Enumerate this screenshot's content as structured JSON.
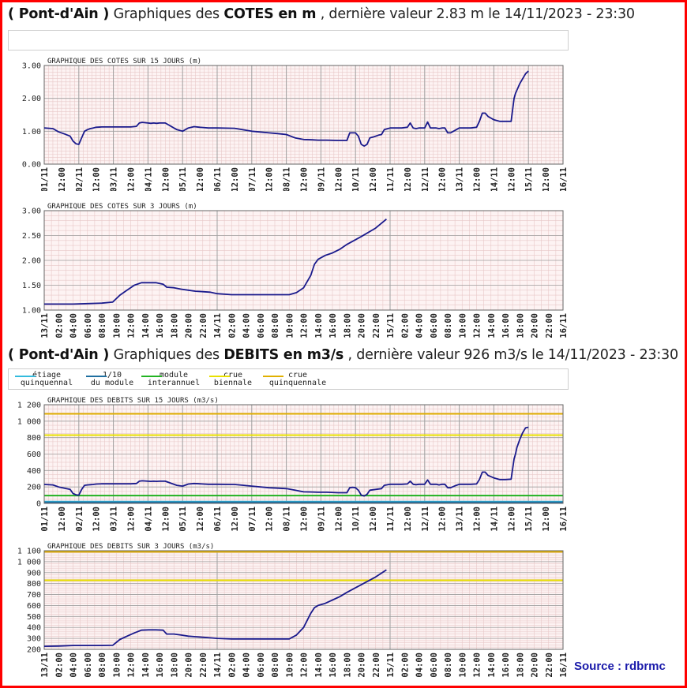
{
  "header_cotes": {
    "station": "( Pont-d'Ain )",
    "prefix": "Graphiques des",
    "bold": "COTES en m",
    "suffix": ", dernière valeur 2.83 m le 14/11/2023 - 23:30"
  },
  "header_debits": {
    "station": "( Pont-d'Ain )",
    "prefix": "Graphiques des",
    "bold": "DEBITS en m3/s",
    "suffix": ", dernière valeur 926 m3/s le 14/11/2023 - 23:30"
  },
  "legend": [
    {
      "line1": "étiage",
      "line2": "quinquennal",
      "color": "#33bbdd"
    },
    {
      "line1": "1/10",
      "line2": "du module",
      "color": "#1f6fa0"
    },
    {
      "line1": "module",
      "line2": "interannuel",
      "color": "#22b322"
    },
    {
      "line1": "crue",
      "line2": "biennale",
      "color": "#e8e000"
    },
    {
      "line1": "crue",
      "line2": "quinquennale",
      "color": "#e0b000"
    }
  ],
  "source": "Source : rdbrmc",
  "colors": {
    "series": "#1a1a8c",
    "plot_bg": "#fdf3f3",
    "grid_minor": "#e8c8c8",
    "grid_major": "#a0a0a0",
    "frame": "#ff0000"
  },
  "chart_data": [
    {
      "id": "cotes15",
      "type": "line",
      "title": "GRAPHIQUE DES COTES SUR 15 JOURS (m)",
      "xlim": [
        0,
        360
      ],
      "x_unit": "hours since 01/11 00:00",
      "ylim": [
        0,
        3
      ],
      "yticks": [
        0,
        1,
        2,
        3
      ],
      "ytick_labels": [
        "0.00",
        "1.00",
        "2.00",
        "3.00"
      ],
      "xtick_labels": [
        "01/11",
        "12:00",
        "02/11",
        "12:00",
        "03/11",
        "12:00",
        "04/11",
        "12:00",
        "05/11",
        "12:00",
        "06/11",
        "12:00",
        "07/11",
        "12:00",
        "08/11",
        "12:00",
        "09/11",
        "12:00",
        "10/11",
        "12:00",
        "11/11",
        "12:00",
        "12/11",
        "12:00",
        "13/11",
        "12:00",
        "14/11",
        "12:00",
        "15/11",
        "12:00",
        "16/11"
      ],
      "xtick_hours": [
        0,
        12,
        24,
        36,
        48,
        60,
        72,
        84,
        96,
        108,
        120,
        132,
        144,
        156,
        168,
        180,
        192,
        204,
        216,
        228,
        240,
        252,
        264,
        276,
        288,
        300,
        312,
        324,
        336,
        348,
        360
      ],
      "thresholds": [],
      "x": [
        0,
        6,
        10,
        14,
        18,
        20,
        22,
        24,
        26,
        28,
        30,
        32,
        34,
        36,
        40,
        48,
        60,
        64,
        66,
        68,
        72,
        74,
        76,
        78,
        80,
        84,
        92,
        96,
        100,
        104,
        108,
        114,
        120,
        132,
        144,
        156,
        162,
        168,
        174,
        180,
        186,
        190,
        196,
        204,
        210,
        212,
        214,
        216,
        218,
        220,
        222,
        224,
        226,
        228,
        230,
        232,
        234,
        236,
        240,
        244,
        248,
        252,
        254,
        256,
        258,
        260,
        264,
        266,
        268,
        270,
        272,
        274,
        276,
        278,
        280,
        282,
        284,
        286,
        288,
        292,
        296,
        300,
        302,
        304,
        306,
        308,
        312,
        316,
        320,
        324,
        326,
        327,
        328,
        330,
        332,
        334,
        336
      ],
      "y": [
        1.1,
        1.08,
        0.98,
        0.92,
        0.85,
        0.7,
        0.62,
        0.6,
        0.8,
        1.0,
        1.05,
        1.08,
        1.1,
        1.12,
        1.13,
        1.13,
        1.13,
        1.15,
        1.25,
        1.27,
        1.25,
        1.24,
        1.25,
        1.24,
        1.25,
        1.25,
        1.05,
        1.0,
        1.1,
        1.14,
        1.12,
        1.1,
        1.1,
        1.09,
        1.0,
        0.95,
        0.93,
        0.9,
        0.8,
        0.75,
        0.74,
        0.73,
        0.73,
        0.72,
        0.72,
        0.95,
        0.95,
        0.95,
        0.85,
        0.6,
        0.55,
        0.6,
        0.8,
        0.82,
        0.85,
        0.88,
        0.9,
        1.05,
        1.1,
        1.1,
        1.1,
        1.12,
        1.25,
        1.1,
        1.08,
        1.1,
        1.1,
        1.28,
        1.1,
        1.1,
        1.1,
        1.08,
        1.1,
        1.1,
        0.95,
        0.95,
        1.0,
        1.05,
        1.1,
        1.1,
        1.1,
        1.12,
        1.3,
        1.55,
        1.55,
        1.45,
        1.35,
        1.3,
        1.3,
        1.3,
        2.0,
        2.15,
        2.25,
        2.45,
        2.6,
        2.75,
        2.83
      ]
    },
    {
      "id": "cotes3",
      "type": "line",
      "title": "GRAPHIQUE DES COTES SUR 3 JOURS (m)",
      "xlim": [
        0,
        72
      ],
      "x_unit": "hours since 13/11 00:00",
      "ylim": [
        1,
        3
      ],
      "yticks": [
        1.0,
        1.5,
        2.0,
        2.5,
        3.0
      ],
      "ytick_labels": [
        "1.00",
        "1.50",
        "2.00",
        "2.50",
        "3.00"
      ],
      "xtick_labels": [
        "13/11",
        "02:00",
        "04:00",
        "06:00",
        "08:00",
        "10:00",
        "12:00",
        "14:00",
        "16:00",
        "18:00",
        "20:00",
        "22:00",
        "14/11",
        "02:00",
        "04:00",
        "06:00",
        "08:00",
        "10:00",
        "12:00",
        "14:00",
        "16:00",
        "18:00",
        "20:00",
        "22:00",
        "15/11",
        "02:00",
        "04:00",
        "06:00",
        "08:00",
        "10:00",
        "12:00",
        "14:00",
        "16:00",
        "18:00",
        "20:00",
        "22:00",
        "16/11"
      ],
      "xtick_hours": [
        0,
        2,
        4,
        6,
        8,
        10,
        12,
        14,
        16,
        18,
        20,
        22,
        24,
        26,
        28,
        30,
        32,
        34,
        36,
        38,
        40,
        42,
        44,
        46,
        48,
        50,
        52,
        54,
        56,
        58,
        60,
        62,
        64,
        66,
        68,
        70,
        72
      ],
      "thresholds": [],
      "x": [
        0,
        4,
        6,
        8,
        9.5,
        10.5,
        11.5,
        12.5,
        13.5,
        14.5,
        15.5,
        16.5,
        17,
        18,
        19,
        20,
        21,
        22,
        23,
        24,
        26,
        30,
        34,
        35,
        36,
        37,
        37.5,
        38,
        39,
        40,
        41,
        42,
        44,
        46,
        47.5
      ],
      "y": [
        1.12,
        1.12,
        1.13,
        1.14,
        1.16,
        1.3,
        1.4,
        1.5,
        1.55,
        1.55,
        1.55,
        1.52,
        1.46,
        1.45,
        1.42,
        1.4,
        1.38,
        1.37,
        1.36,
        1.33,
        1.31,
        1.31,
        1.31,
        1.35,
        1.45,
        1.7,
        1.92,
        2.02,
        2.1,
        2.15,
        2.22,
        2.32,
        2.48,
        2.65,
        2.83
      ]
    },
    {
      "id": "debits15",
      "type": "line",
      "title": "GRAPHIQUE DES DEBITS SUR 15 JOURS (m3/s)",
      "xlim": [
        0,
        360
      ],
      "x_unit": "hours since 01/11 00:00",
      "ylim": [
        0,
        1200
      ],
      "yticks": [
        0,
        200,
        400,
        600,
        800,
        1000,
        1200
      ],
      "ytick_labels": [
        "0",
        "200",
        "400",
        "600",
        "800",
        "1 000",
        "1 200"
      ],
      "xtick_labels": [
        "01/11",
        "12:00",
        "02/11",
        "12:00",
        "03/11",
        "12:00",
        "04/11",
        "12:00",
        "05/11",
        "12:00",
        "06/11",
        "12:00",
        "07/11",
        "12:00",
        "08/11",
        "12:00",
        "09/11",
        "12:00",
        "10/11",
        "12:00",
        "11/11",
        "12:00",
        "12/11",
        "12:00",
        "13/11",
        "12:00",
        "14/11",
        "12:00",
        "15/11",
        "12:00",
        "16/11"
      ],
      "xtick_hours": [
        0,
        12,
        24,
        36,
        48,
        60,
        72,
        84,
        96,
        108,
        120,
        132,
        144,
        156,
        168,
        180,
        192,
        204,
        216,
        228,
        240,
        252,
        264,
        276,
        288,
        300,
        312,
        324,
        336,
        348,
        360
      ],
      "thresholds": [
        {
          "name": "étiage quinquennal",
          "value": 22,
          "color": "#33bbdd"
        },
        {
          "name": "1/10 du module",
          "value": 13,
          "color": "#1f6fa0"
        },
        {
          "name": "module interannuel",
          "value": 95,
          "color": "#22b322"
        },
        {
          "name": "crue biennale",
          "value": 830,
          "color": "#e8e000"
        },
        {
          "name": "crue quinquennale",
          "value": 1090,
          "color": "#e0b000"
        }
      ],
      "x": [
        0,
        6,
        10,
        14,
        18,
        20,
        22,
        24,
        26,
        28,
        30,
        32,
        34,
        36,
        40,
        48,
        60,
        64,
        66,
        68,
        72,
        74,
        76,
        78,
        80,
        84,
        92,
        96,
        100,
        104,
        108,
        114,
        120,
        132,
        144,
        156,
        162,
        168,
        174,
        180,
        186,
        190,
        196,
        204,
        210,
        212,
        214,
        216,
        218,
        220,
        222,
        224,
        226,
        228,
        230,
        232,
        234,
        236,
        240,
        244,
        248,
        252,
        254,
        256,
        258,
        260,
        264,
        266,
        268,
        270,
        272,
        274,
        276,
        278,
        280,
        282,
        284,
        286,
        288,
        292,
        296,
        300,
        302,
        304,
        306,
        308,
        312,
        316,
        320,
        324,
        326,
        327,
        328,
        330,
        332,
        334,
        336
      ],
      "y": [
        230,
        225,
        200,
        185,
        170,
        120,
        105,
        100,
        170,
        220,
        225,
        228,
        230,
        235,
        238,
        238,
        238,
        242,
        270,
        275,
        270,
        268,
        270,
        268,
        270,
        270,
        220,
        210,
        235,
        242,
        238,
        232,
        232,
        230,
        210,
        190,
        185,
        180,
        160,
        140,
        138,
        135,
        135,
        130,
        130,
        190,
        195,
        190,
        160,
        100,
        90,
        110,
        160,
        165,
        170,
        175,
        180,
        220,
        232,
        232,
        232,
        236,
        270,
        232,
        228,
        232,
        232,
        285,
        232,
        232,
        232,
        225,
        232,
        232,
        190,
        190,
        205,
        220,
        232,
        232,
        232,
        236,
        290,
        380,
        380,
        340,
        310,
        290,
        290,
        295,
        540,
        600,
        680,
        780,
        860,
        920,
        926
      ]
    },
    {
      "id": "debits3",
      "type": "line",
      "title": "GRAPHIQUE DES DEBITS SUR 3 JOURS (m3/s)",
      "xlim": [
        0,
        72
      ],
      "x_unit": "hours since 13/11 00:00",
      "ylim": [
        200,
        1100
      ],
      "yticks": [
        200,
        300,
        400,
        500,
        600,
        700,
        800,
        900,
        1000,
        1100
      ],
      "ytick_labels": [
        "200",
        "300",
        "400",
        "500",
        "600",
        "700",
        "800",
        "900",
        "1 000",
        "1 100"
      ],
      "xtick_labels": [
        "13/11",
        "02:00",
        "04:00",
        "06:00",
        "08:00",
        "10:00",
        "12:00",
        "14:00",
        "16:00",
        "18:00",
        "20:00",
        "22:00",
        "14/11",
        "02:00",
        "04:00",
        "06:00",
        "08:00",
        "10:00",
        "12:00",
        "14:00",
        "16:00",
        "18:00",
        "20:00",
        "22:00",
        "15/11",
        "02:00",
        "04:00",
        "06:00",
        "08:00",
        "10:00",
        "12:00",
        "14:00",
        "16:00",
        "18:00",
        "20:00",
        "22:00",
        "16/11"
      ],
      "xtick_hours": [
        0,
        2,
        4,
        6,
        8,
        10,
        12,
        14,
        16,
        18,
        20,
        22,
        24,
        26,
        28,
        30,
        32,
        34,
        36,
        38,
        40,
        42,
        44,
        46,
        48,
        50,
        52,
        54,
        56,
        58,
        60,
        62,
        64,
        66,
        68,
        70,
        72
      ],
      "thresholds": [
        {
          "name": "crue biennale",
          "value": 830,
          "color": "#e8e000"
        },
        {
          "name": "crue quinquennale",
          "value": 1090,
          "color": "#e0b000"
        }
      ],
      "x": [
        0,
        2,
        4,
        6,
        8,
        9.5,
        10.5,
        11.5,
        12.5,
        13.5,
        14.5,
        15.5,
        16.5,
        17,
        18,
        19,
        20,
        21,
        22,
        23,
        24,
        26,
        30,
        34,
        35,
        36,
        37,
        37.5,
        38,
        39,
        40,
        41,
        42,
        44,
        46,
        47.5
      ],
      "y": [
        228,
        230,
        235,
        235,
        235,
        237,
        290,
        320,
        350,
        375,
        378,
        378,
        375,
        340,
        340,
        330,
        320,
        315,
        310,
        305,
        300,
        295,
        295,
        295,
        330,
        400,
        530,
        580,
        600,
        620,
        650,
        680,
        720,
        790,
        860,
        926
      ]
    }
  ]
}
